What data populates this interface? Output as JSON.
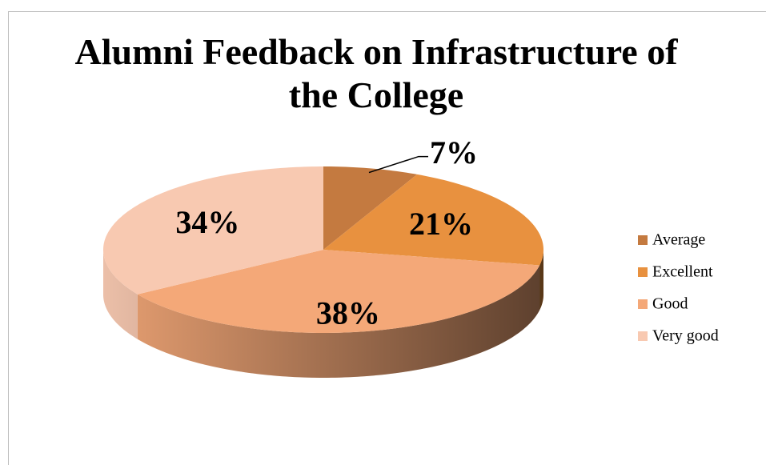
{
  "chart_data": {
    "type": "pie",
    "title": "Alumni Feedback on Infrastructure of the College",
    "categories": [
      "Average",
      "Excellent",
      "Good",
      "Very good"
    ],
    "values": [
      7,
      21,
      38,
      34
    ],
    "value_labels": [
      "7%",
      "21%",
      "38%",
      "34%"
    ],
    "colors": [
      "#c47a40",
      "#e8913f",
      "#f4a878",
      "#f8c9b1"
    ],
    "legend": "right"
  }
}
